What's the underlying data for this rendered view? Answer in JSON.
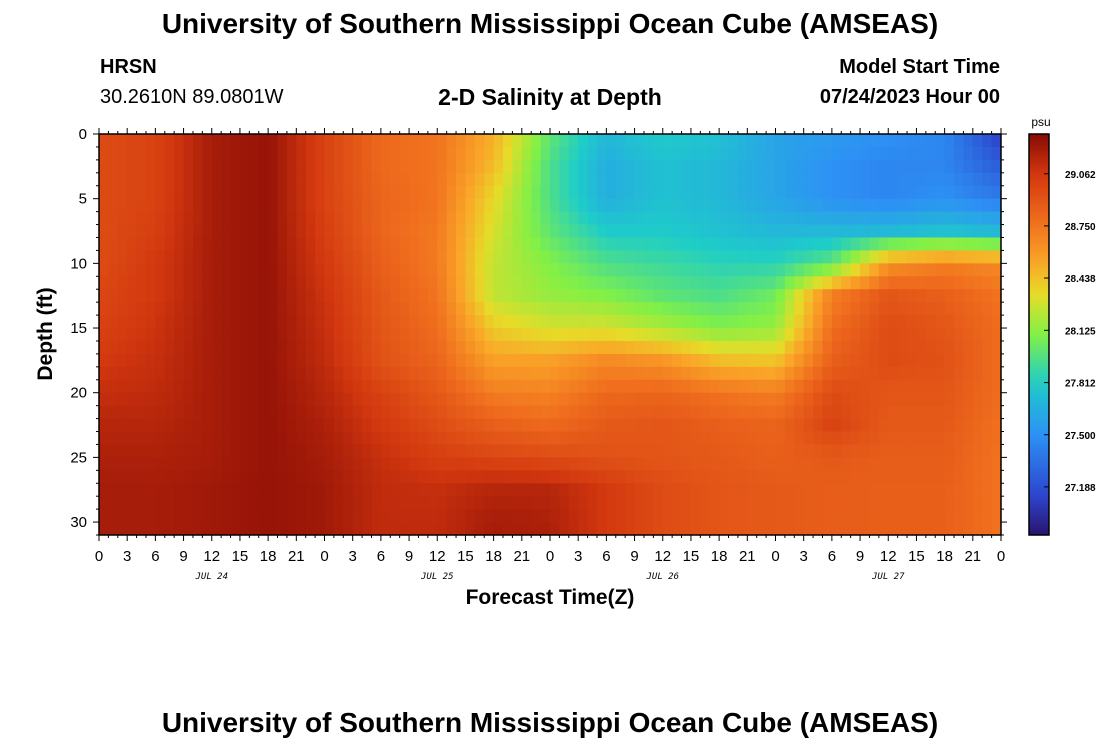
{
  "page": {
    "title": "University of Southern Mississippi Ocean Cube (AMSEAS)",
    "footer_title": "University of Southern Mississippi Ocean Cube (AMSEAS)",
    "station": "HRSN",
    "coordinates": "30.2610N  89.0801W",
    "subtitle": "2-D Salinity at Depth",
    "model_start_label": "Model Start Time",
    "model_start_value": "07/24/2023 Hour 00"
  },
  "chart_data": {
    "type": "heatmap",
    "title": "2-D Salinity at Depth",
    "xlabel": "Forecast Time(Z)",
    "ylabel": "Depth (ft)",
    "x_start": 0,
    "x_end": 96,
    "ylim": [
      0,
      31
    ],
    "y_inverted": true,
    "x_tick_labels": [
      "0",
      "3",
      "6",
      "9",
      "12",
      "15",
      "18",
      "21",
      "0",
      "3",
      "6",
      "9",
      "12",
      "15",
      "18",
      "21",
      "0",
      "3",
      "6",
      "9",
      "12",
      "15",
      "18",
      "21",
      "0",
      "3",
      "6",
      "9",
      "12",
      "15",
      "18",
      "21",
      "0"
    ],
    "day_labels": [
      "JUL 24",
      "JUL 25",
      "JUL 26",
      "JUL 27"
    ],
    "y_ticks": [
      0,
      5,
      10,
      15,
      20,
      25,
      30
    ],
    "colorbar": {
      "unit": "psu",
      "min": 26.9,
      "max": 29.3,
      "tick_values": [
        29.062,
        28.75,
        28.438,
        28.125,
        27.812,
        27.5,
        27.188
      ],
      "tick_labels": [
        "29.062",
        "28.750",
        "28.438",
        "28.125",
        "27.812",
        "27.500",
        "27.188"
      ]
    },
    "row_depths": [
      0,
      2.5,
      5,
      7.5,
      10,
      12.5,
      15,
      17.5,
      20,
      22.5,
      25,
      27.5,
      30
    ],
    "col_hours": [
      0,
      6,
      12,
      18,
      24,
      30,
      36,
      42,
      48,
      54,
      60,
      66,
      72,
      78,
      84,
      90,
      96
    ],
    "salinity": [
      [
        28.95,
        29.0,
        29.2,
        29.25,
        29.0,
        28.8,
        28.75,
        28.5,
        28.0,
        27.7,
        27.8,
        27.75,
        27.6,
        27.55,
        27.5,
        27.45,
        27.1
      ],
      [
        28.95,
        29.0,
        29.2,
        29.25,
        29.0,
        28.8,
        28.75,
        28.45,
        27.95,
        27.65,
        27.75,
        27.7,
        27.6,
        27.5,
        27.45,
        27.45,
        27.25
      ],
      [
        28.95,
        29.0,
        29.2,
        29.25,
        29.0,
        28.82,
        28.75,
        28.35,
        27.95,
        27.65,
        27.75,
        27.7,
        27.6,
        27.5,
        27.45,
        27.5,
        27.4
      ],
      [
        28.95,
        29.02,
        29.2,
        29.25,
        29.02,
        28.82,
        28.72,
        28.3,
        28.0,
        27.8,
        27.8,
        27.75,
        27.7,
        27.7,
        27.7,
        27.75,
        27.7
      ],
      [
        28.95,
        29.05,
        29.2,
        29.25,
        29.05,
        28.85,
        28.72,
        28.25,
        28.1,
        27.95,
        27.9,
        27.85,
        27.85,
        28.0,
        28.6,
        28.7,
        28.65
      ],
      [
        28.98,
        29.05,
        29.2,
        29.25,
        29.08,
        28.88,
        28.75,
        28.25,
        28.15,
        28.1,
        28.0,
        27.95,
        28.05,
        28.7,
        28.9,
        28.85,
        28.75
      ],
      [
        29.0,
        29.08,
        29.2,
        29.25,
        29.1,
        28.9,
        28.78,
        28.4,
        28.3,
        28.3,
        28.2,
        28.1,
        28.15,
        28.78,
        28.95,
        28.9,
        28.78
      ],
      [
        29.05,
        29.1,
        29.2,
        29.25,
        29.12,
        28.92,
        28.82,
        28.55,
        28.55,
        28.65,
        28.6,
        28.45,
        28.42,
        28.85,
        28.95,
        28.92,
        28.78
      ],
      [
        29.1,
        29.12,
        29.2,
        29.25,
        29.15,
        29.0,
        28.88,
        28.7,
        28.68,
        28.8,
        28.82,
        28.75,
        28.7,
        28.95,
        28.9,
        28.9,
        28.78
      ],
      [
        29.15,
        29.15,
        29.2,
        29.25,
        29.18,
        29.05,
        28.95,
        28.85,
        28.8,
        28.88,
        28.9,
        28.85,
        28.82,
        29.0,
        28.88,
        28.88,
        28.76
      ],
      [
        29.18,
        29.18,
        29.2,
        29.25,
        29.2,
        29.1,
        29.02,
        28.98,
        28.95,
        28.92,
        28.9,
        28.88,
        28.85,
        28.88,
        28.86,
        28.86,
        28.75
      ],
      [
        29.2,
        29.2,
        29.22,
        29.25,
        29.22,
        29.12,
        29.1,
        29.15,
        29.15,
        29.05,
        28.95,
        28.9,
        28.88,
        28.86,
        28.85,
        28.85,
        28.75
      ],
      [
        29.2,
        29.2,
        29.22,
        29.25,
        29.22,
        29.12,
        29.12,
        29.2,
        29.18,
        29.05,
        28.95,
        28.9,
        28.88,
        28.86,
        28.85,
        28.85,
        28.75
      ]
    ]
  }
}
